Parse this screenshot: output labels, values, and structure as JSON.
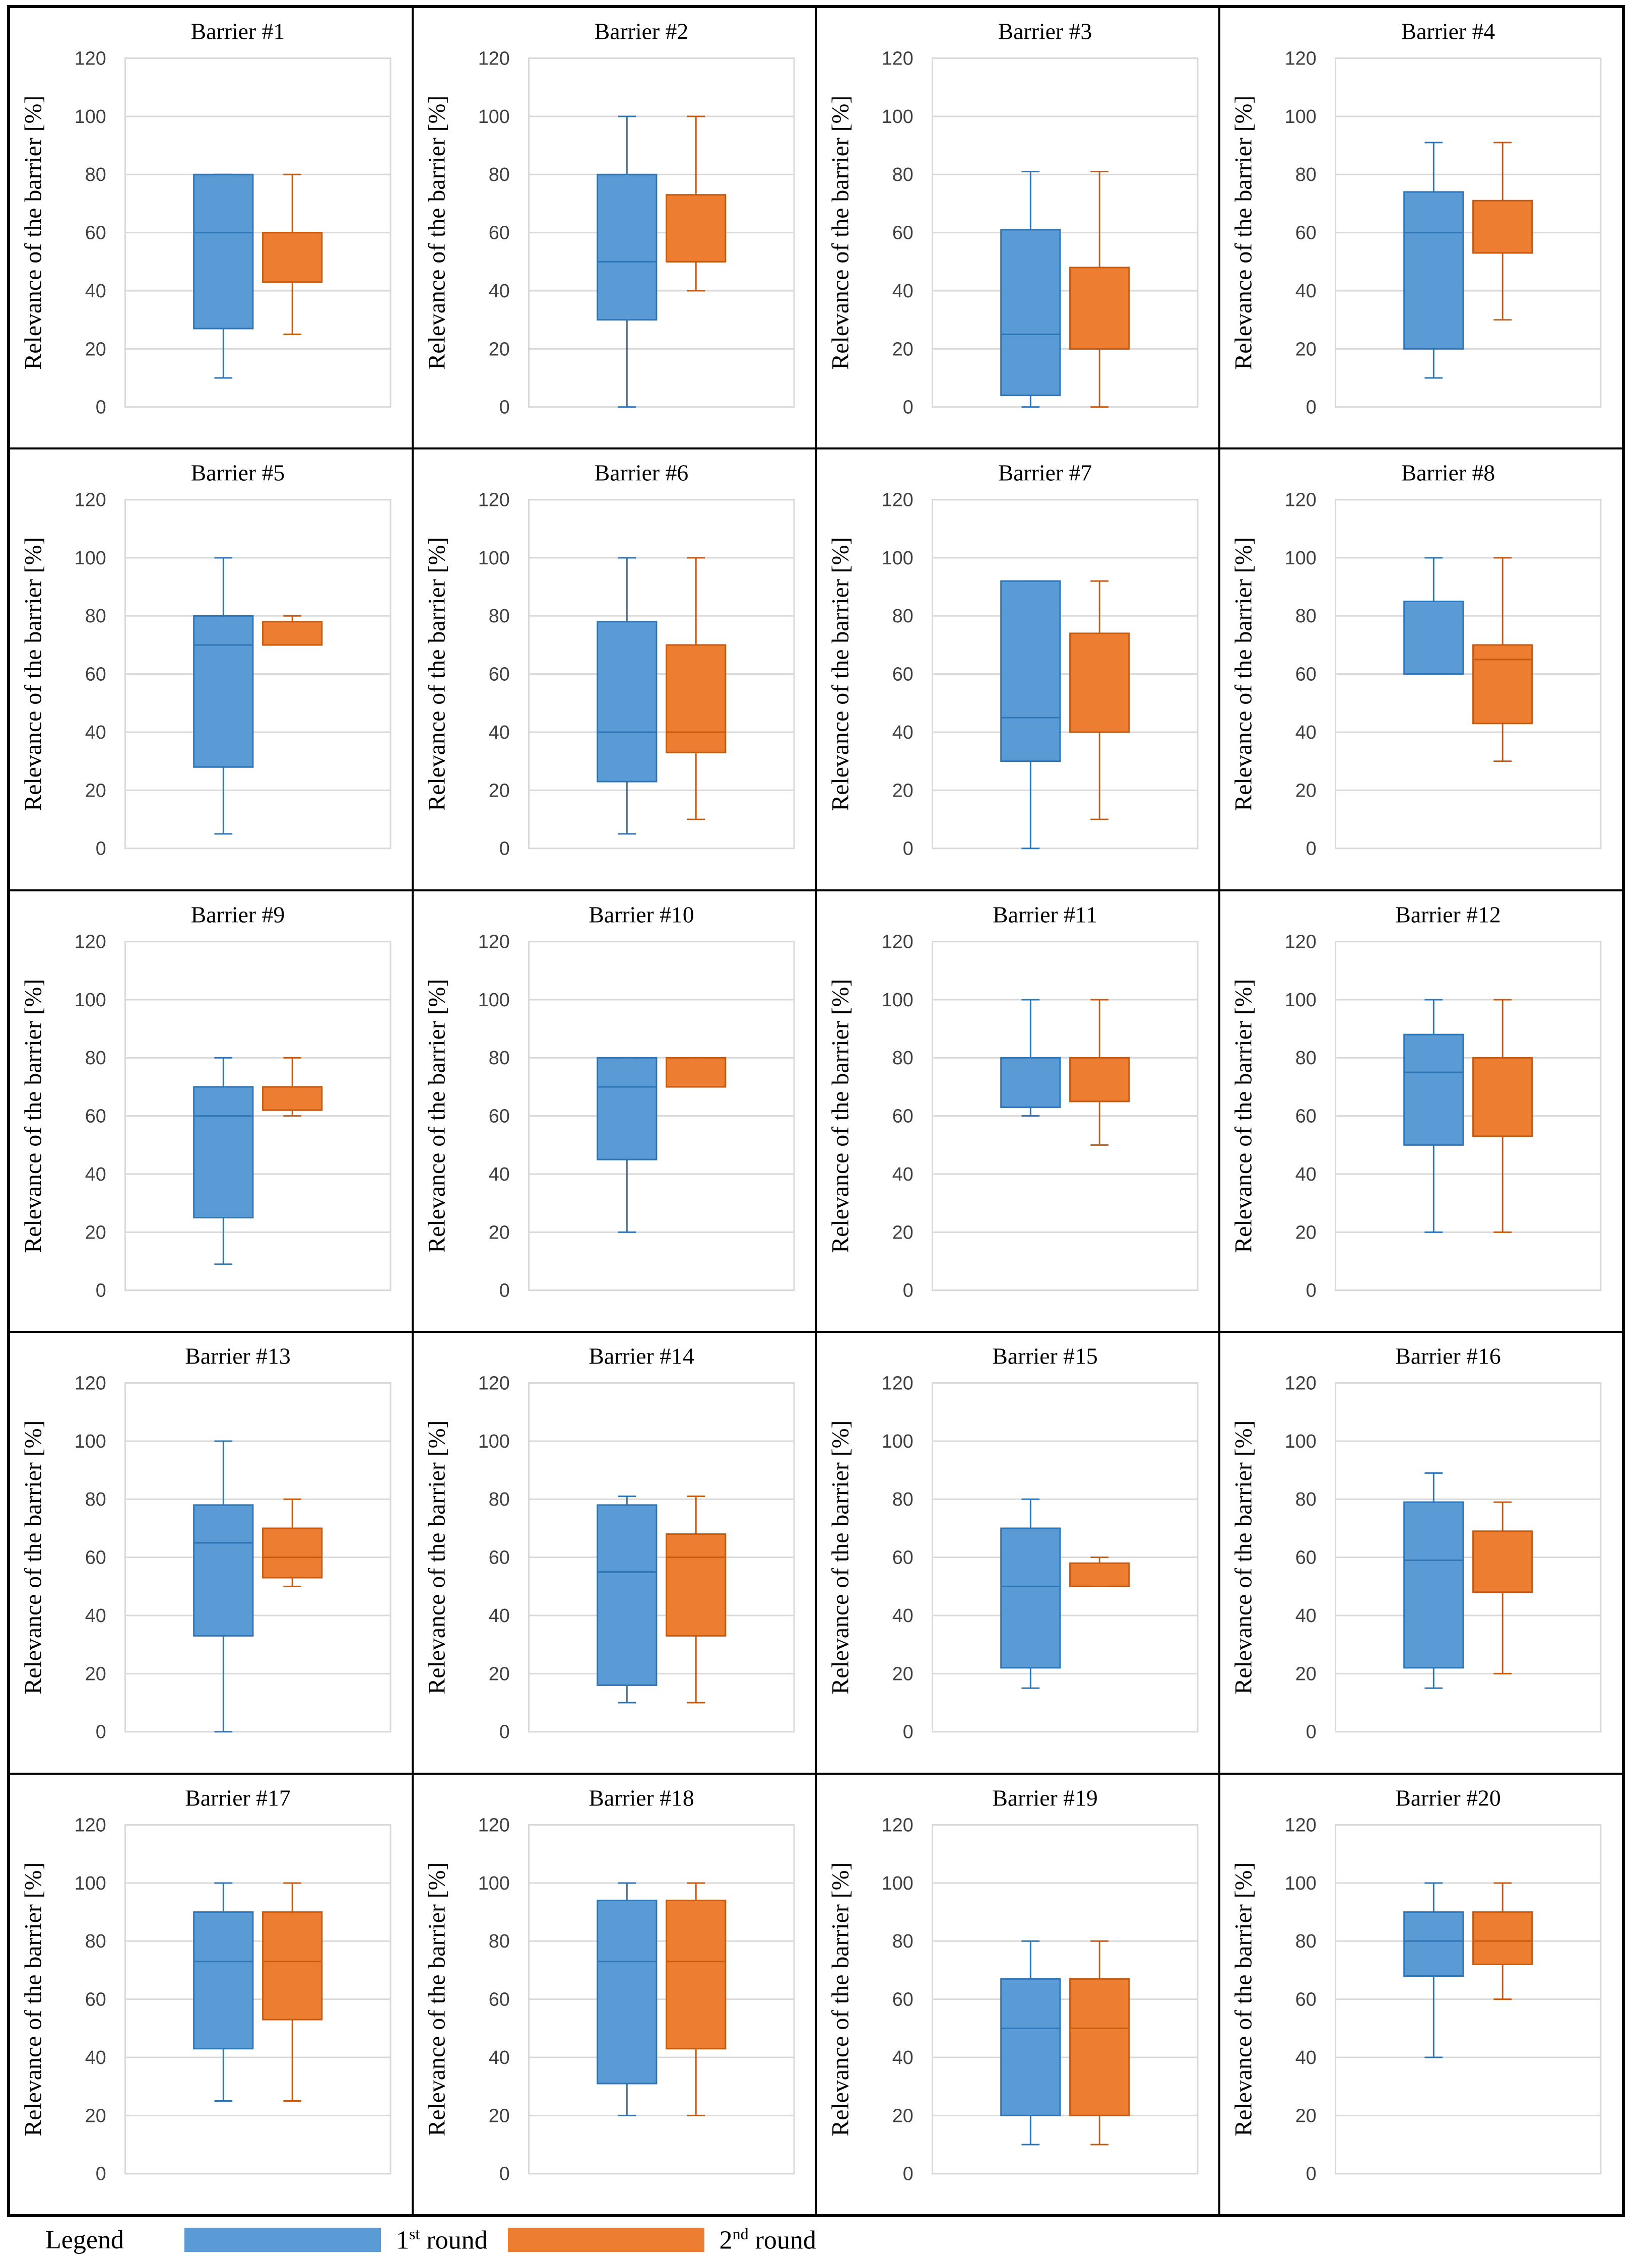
{
  "legend": {
    "title": "Legend",
    "items": [
      {
        "prefix": "1",
        "sup": "st",
        "suffix": " round",
        "color": "#5B9BD5"
      },
      {
        "prefix": "2",
        "sup": "nd",
        "suffix": " round",
        "color": "#ED7D31"
      }
    ]
  },
  "colors": {
    "series1": "#5B9BD5",
    "series1_edge": "#2E75B6",
    "series2": "#ED7D31",
    "series2_edge": "#C55A11",
    "grid": "#D9D9D9",
    "axis": "#BFBFBF"
  },
  "chart_data": [
    {
      "type": "box",
      "title": "Barrier #1",
      "ylabel": "Relevance of the barrier [%]",
      "ylim": [
        0,
        120
      ],
      "yticks": [
        0,
        20,
        40,
        60,
        80,
        100,
        120
      ],
      "series": [
        {
          "name": "1st round",
          "min": 10,
          "q1": 27,
          "median": 60,
          "q3": 80,
          "max": 80
        },
        {
          "name": "2nd round",
          "min": 25,
          "q1": 43,
          "median": 60,
          "q3": 60,
          "max": 80
        }
      ]
    },
    {
      "type": "box",
      "title": "Barrier #2",
      "ylabel": "Relevance of the barrier [%]",
      "ylim": [
        0,
        120
      ],
      "yticks": [
        0,
        20,
        40,
        60,
        80,
        100,
        120
      ],
      "series": [
        {
          "name": "1st round",
          "min": 0,
          "q1": 30,
          "median": 50,
          "q3": 80,
          "max": 100
        },
        {
          "name": "2nd round",
          "min": 40,
          "q1": 50,
          "median": 50,
          "q3": 73,
          "max": 100
        }
      ]
    },
    {
      "type": "box",
      "title": "Barrier #3",
      "ylabel": "Relevance of the barrier [%]",
      "ylim": [
        0,
        120
      ],
      "yticks": [
        0,
        20,
        40,
        60,
        80,
        100,
        120
      ],
      "series": [
        {
          "name": "1st round",
          "min": 0,
          "q1": 4,
          "median": 25,
          "q3": 61,
          "max": 81
        },
        {
          "name": "2nd round",
          "min": 0,
          "q1": 20,
          "median": 20,
          "q3": 48,
          "max": 81
        }
      ]
    },
    {
      "type": "box",
      "title": "Barrier #4",
      "ylabel": "Relevance of the barrier [%]",
      "ylim": [
        0,
        120
      ],
      "yticks": [
        0,
        20,
        40,
        60,
        80,
        100,
        120
      ],
      "series": [
        {
          "name": "1st round",
          "min": 10,
          "q1": 20,
          "median": 60,
          "q3": 74,
          "max": 91
        },
        {
          "name": "2nd round",
          "min": 30,
          "q1": 53,
          "median": 53,
          "q3": 71,
          "max": 91
        }
      ]
    },
    {
      "type": "box",
      "title": "Barrier #5",
      "ylabel": "Relevance of the barrier [%]",
      "ylim": [
        0,
        120
      ],
      "yticks": [
        0,
        20,
        40,
        60,
        80,
        100,
        120
      ],
      "series": [
        {
          "name": "1st round",
          "min": 5,
          "q1": 28,
          "median": 70,
          "q3": 80,
          "max": 100
        },
        {
          "name": "2nd round",
          "min": 70,
          "q1": 70,
          "median": 70,
          "q3": 78,
          "max": 80
        }
      ]
    },
    {
      "type": "box",
      "title": "Barrier #6",
      "ylabel": "Relevance of the barrier [%]",
      "ylim": [
        0,
        120
      ],
      "yticks": [
        0,
        20,
        40,
        60,
        80,
        100,
        120
      ],
      "series": [
        {
          "name": "1st round",
          "min": 5,
          "q1": 23,
          "median": 40,
          "q3": 78,
          "max": 100
        },
        {
          "name": "2nd round",
          "min": 10,
          "q1": 33,
          "median": 40,
          "q3": 70,
          "max": 100
        }
      ]
    },
    {
      "type": "box",
      "title": "Barrier #7",
      "ylabel": "Relevance of the barrier [%]",
      "ylim": [
        0,
        120
      ],
      "yticks": [
        0,
        20,
        40,
        60,
        80,
        100,
        120
      ],
      "series": [
        {
          "name": "1st round",
          "min": 0,
          "q1": 30,
          "median": 45,
          "q3": 92,
          "max": 92
        },
        {
          "name": "2nd round",
          "min": 10,
          "q1": 40,
          "median": 40,
          "q3": 74,
          "max": 92
        }
      ]
    },
    {
      "type": "box",
      "title": "Barrier #8",
      "ylabel": "Relevance of the barrier [%]",
      "ylim": [
        0,
        120
      ],
      "yticks": [
        0,
        20,
        40,
        60,
        80,
        100,
        120
      ],
      "series": [
        {
          "name": "1st round",
          "min": 60,
          "q1": 60,
          "median": 60,
          "q3": 85,
          "max": 100
        },
        {
          "name": "2nd round",
          "min": 30,
          "q1": 43,
          "median": 65,
          "q3": 70,
          "max": 100
        }
      ]
    },
    {
      "type": "box",
      "title": "Barrier #9",
      "ylabel": "Relevance of the barrier [%]",
      "ylim": [
        0,
        120
      ],
      "yticks": [
        0,
        20,
        40,
        60,
        80,
        100,
        120
      ],
      "series": [
        {
          "name": "1st round",
          "min": 9,
          "q1": 25,
          "median": 60,
          "q3": 70,
          "max": 80
        },
        {
          "name": "2nd round",
          "min": 60,
          "q1": 62,
          "median": 62,
          "q3": 70,
          "max": 80
        }
      ]
    },
    {
      "type": "box",
      "title": "Barrier #10",
      "ylabel": "Relevance of the barrier [%]",
      "ylim": [
        0,
        120
      ],
      "yticks": [
        0,
        20,
        40,
        60,
        80,
        100,
        120
      ],
      "series": [
        {
          "name": "1st round",
          "min": 20,
          "q1": 45,
          "median": 70,
          "q3": 80,
          "max": 80
        },
        {
          "name": "2nd round",
          "min": 70,
          "q1": 70,
          "median": 70,
          "q3": 80,
          "max": 80
        }
      ]
    },
    {
      "type": "box",
      "title": "Barrier #11",
      "ylabel": "Relevance of the barrier [%]",
      "ylim": [
        0,
        120
      ],
      "yticks": [
        0,
        20,
        40,
        60,
        80,
        100,
        120
      ],
      "series": [
        {
          "name": "1st round",
          "min": 60,
          "q1": 63,
          "median": 63,
          "q3": 80,
          "max": 100
        },
        {
          "name": "2nd round",
          "min": 50,
          "q1": 65,
          "median": 65,
          "q3": 80,
          "max": 100
        }
      ]
    },
    {
      "type": "box",
      "title": "Barrier #12",
      "ylabel": "Relevance of the barrier [%]",
      "ylim": [
        0,
        120
      ],
      "yticks": [
        0,
        20,
        40,
        60,
        80,
        100,
        120
      ],
      "series": [
        {
          "name": "1st round",
          "min": 20,
          "q1": 50,
          "median": 75,
          "q3": 88,
          "max": 100
        },
        {
          "name": "2nd round",
          "min": 20,
          "q1": 53,
          "median": 53,
          "q3": 80,
          "max": 100
        }
      ]
    },
    {
      "type": "box",
      "title": "Barrier #13",
      "ylabel": "Relevance of the barrier [%]",
      "ylim": [
        0,
        120
      ],
      "yticks": [
        0,
        20,
        40,
        60,
        80,
        100,
        120
      ],
      "series": [
        {
          "name": "1st round",
          "min": 0,
          "q1": 33,
          "median": 65,
          "q3": 78,
          "max": 100
        },
        {
          "name": "2nd round",
          "min": 50,
          "q1": 53,
          "median": 60,
          "q3": 70,
          "max": 80
        }
      ]
    },
    {
      "type": "box",
      "title": "Barrier #14",
      "ylabel": "Relevance of the barrier [%]",
      "ylim": [
        0,
        120
      ],
      "yticks": [
        0,
        20,
        40,
        60,
        80,
        100,
        120
      ],
      "series": [
        {
          "name": "1st round",
          "min": 10,
          "q1": 16,
          "median": 55,
          "q3": 78,
          "max": 81
        },
        {
          "name": "2nd round",
          "min": 10,
          "q1": 33,
          "median": 60,
          "q3": 68,
          "max": 81
        }
      ]
    },
    {
      "type": "box",
      "title": "Barrier #15",
      "ylabel": "Relevance of the barrier [%]",
      "ylim": [
        0,
        120
      ],
      "yticks": [
        0,
        20,
        40,
        60,
        80,
        100,
        120
      ],
      "series": [
        {
          "name": "1st round",
          "min": 15,
          "q1": 22,
          "median": 50,
          "q3": 70,
          "max": 80
        },
        {
          "name": "2nd round",
          "min": 50,
          "q1": 50,
          "median": 50,
          "q3": 58,
          "max": 60
        }
      ]
    },
    {
      "type": "box",
      "title": "Barrier #16",
      "ylabel": "Relevance of the barrier [%]",
      "ylim": [
        0,
        120
      ],
      "yticks": [
        0,
        20,
        40,
        60,
        80,
        100,
        120
      ],
      "series": [
        {
          "name": "1st round",
          "min": 15,
          "q1": 22,
          "median": 59,
          "q3": 79,
          "max": 89
        },
        {
          "name": "2nd round",
          "min": 20,
          "q1": 48,
          "median": 48,
          "q3": 69,
          "max": 79
        }
      ]
    },
    {
      "type": "box",
      "title": "Barrier #17",
      "ylabel": "Relevance of the barrier [%]",
      "ylim": [
        0,
        120
      ],
      "yticks": [
        0,
        20,
        40,
        60,
        80,
        100,
        120
      ],
      "series": [
        {
          "name": "1st round",
          "min": 25,
          "q1": 43,
          "median": 73,
          "q3": 90,
          "max": 100
        },
        {
          "name": "2nd round",
          "min": 25,
          "q1": 53,
          "median": 73,
          "q3": 90,
          "max": 100
        }
      ]
    },
    {
      "type": "box",
      "title": "Barrier #18",
      "ylabel": "Relevance of the barrier [%]",
      "ylim": [
        0,
        120
      ],
      "yticks": [
        0,
        20,
        40,
        60,
        80,
        100,
        120
      ],
      "series": [
        {
          "name": "1st round",
          "min": 20,
          "q1": 31,
          "median": 73,
          "q3": 94,
          "max": 100
        },
        {
          "name": "2nd round",
          "min": 20,
          "q1": 43,
          "median": 73,
          "q3": 94,
          "max": 100
        }
      ]
    },
    {
      "type": "box",
      "title": "Barrier #19",
      "ylabel": "Relevance of the barrier [%]",
      "ylim": [
        0,
        120
      ],
      "yticks": [
        0,
        20,
        40,
        60,
        80,
        100,
        120
      ],
      "series": [
        {
          "name": "1st round",
          "min": 10,
          "q1": 20,
          "median": 50,
          "q3": 67,
          "max": 80
        },
        {
          "name": "2nd round",
          "min": 10,
          "q1": 20,
          "median": 50,
          "q3": 67,
          "max": 80
        }
      ]
    },
    {
      "type": "box",
      "title": "Barrier #20",
      "ylabel": "Relevance of the barrier [%]",
      "ylim": [
        0,
        120
      ],
      "yticks": [
        0,
        20,
        40,
        60,
        80,
        100,
        120
      ],
      "series": [
        {
          "name": "1st round",
          "min": 40,
          "q1": 68,
          "median": 80,
          "q3": 90,
          "max": 100
        },
        {
          "name": "2nd round",
          "min": 60,
          "q1": 72,
          "median": 80,
          "q3": 90,
          "max": 100
        }
      ]
    }
  ]
}
